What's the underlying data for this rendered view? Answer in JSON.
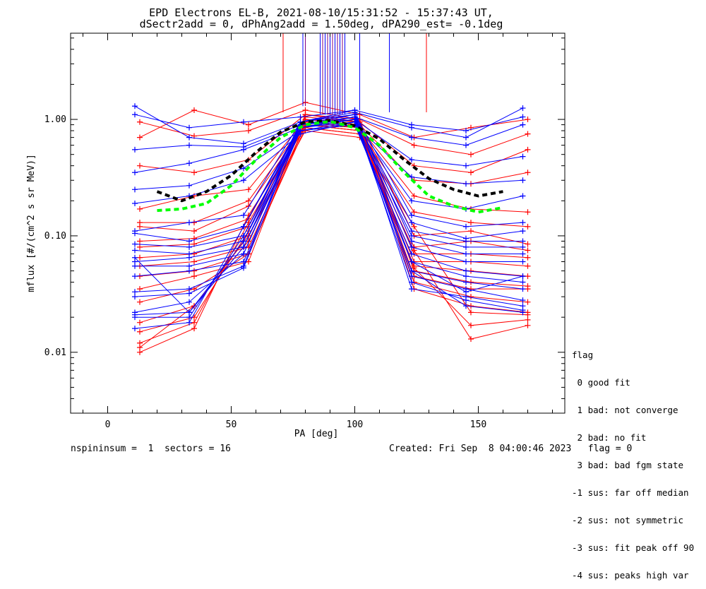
{
  "chart_data": {
    "type": "line",
    "title": "EPD Electrons EL-B, 2021-08-10/15:31:52 - 15:37:43 UT,",
    "subtitle": "dSectr2add = 0, dPhAng2add = 1.50deg, dPA290_est=  -0.1deg",
    "xlabel": "PA [deg]",
    "ylabel": "mflux [#/(cm^2 s sr MeV)]",
    "xlim": [
      -15,
      185
    ],
    "ylim": [
      0.003,
      5.5
    ],
    "yscale": "log",
    "x_ticks": [
      0,
      50,
      100,
      150
    ],
    "x_tick_labels": [
      "0",
      "50",
      "100",
      "150"
    ],
    "y_ticks": [
      0.01,
      0.1,
      1.0
    ],
    "y_tick_labels": [
      "0.01",
      "0.10",
      "1.00"
    ],
    "pa_bins": [
      11,
      33,
      55,
      78,
      100,
      123,
      145,
      168
    ],
    "red_pa_bins": [
      13,
      35,
      57,
      80,
      102,
      124,
      147,
      170
    ],
    "blue_series_values": [
      [
        1.3,
        0.7,
        0.62,
        0.95,
        1.15,
        0.85,
        0.7,
        1.25
      ],
      [
        1.1,
        0.85,
        0.95,
        1.05,
        1.2,
        0.9,
        0.8,
        1.05
      ],
      [
        0.55,
        0.6,
        0.58,
        0.9,
        1.05,
        0.7,
        0.6,
        0.9
      ],
      [
        0.35,
        0.42,
        0.55,
        0.85,
        1.0,
        0.45,
        0.4,
        0.48
      ],
      [
        0.25,
        0.27,
        0.38,
        0.8,
        0.9,
        0.32,
        0.28,
        0.3
      ],
      [
        0.19,
        0.22,
        0.3,
        0.75,
        0.95,
        0.2,
        0.17,
        0.22
      ],
      [
        0.11,
        0.13,
        0.15,
        0.95,
        1.1,
        0.15,
        0.12,
        0.13
      ],
      [
        0.105,
        0.09,
        0.12,
        0.9,
        1.0,
        0.13,
        0.095,
        0.11
      ],
      [
        0.085,
        0.08,
        0.1,
        0.85,
        1.05,
        0.11,
        0.09,
        0.09
      ],
      [
        0.075,
        0.07,
        0.09,
        0.8,
        0.95,
        0.1,
        0.08,
        0.08
      ],
      [
        0.06,
        0.065,
        0.08,
        0.9,
        1.1,
        0.09,
        0.07,
        0.07
      ],
      [
        0.055,
        0.055,
        0.07,
        0.85,
        1.0,
        0.08,
        0.06,
        0.06
      ],
      [
        0.045,
        0.05,
        0.06,
        0.8,
        0.9,
        0.07,
        0.05,
        0.045
      ],
      [
        0.033,
        0.035,
        0.055,
        0.95,
        1.2,
        0.06,
        0.045,
        0.04
      ],
      [
        0.03,
        0.032,
        0.053,
        0.85,
        1.0,
        0.05,
        0.04,
        0.035
      ],
      [
        0.022,
        0.027,
        0.07,
        0.9,
        1.05,
        0.045,
        0.035,
        0.028
      ],
      [
        0.021,
        0.022,
        0.09,
        0.95,
        1.1,
        0.035,
        0.03,
        0.025
      ],
      [
        0.02,
        0.02,
        0.1,
        0.9,
        1.0,
        0.04,
        0.028,
        0.023
      ],
      [
        0.016,
        0.018,
        0.12,
        0.85,
        0.95,
        0.05,
        0.025,
        0.022
      ],
      [
        0.065,
        0.022,
        0.08,
        0.8,
        0.9,
        0.06,
        0.033,
        0.045
      ]
    ],
    "red_series_values": [
      [
        0.7,
        1.2,
        0.9,
        1.4,
        1.1,
        0.7,
        0.85,
        1.0
      ],
      [
        0.95,
        0.72,
        0.8,
        1.2,
        1.0,
        0.6,
        0.5,
        0.75
      ],
      [
        0.4,
        0.35,
        0.45,
        1.1,
        0.95,
        0.4,
        0.35,
        0.55
      ],
      [
        0.17,
        0.22,
        0.25,
        1.0,
        0.9,
        0.3,
        0.28,
        0.35
      ],
      [
        0.13,
        0.13,
        0.2,
        0.95,
        0.85,
        0.22,
        0.17,
        0.16
      ],
      [
        0.12,
        0.11,
        0.18,
        0.9,
        0.8,
        0.16,
        0.13,
        0.12
      ],
      [
        0.09,
        0.095,
        0.14,
        1.05,
        0.95,
        0.1,
        0.11,
        0.085
      ],
      [
        0.08,
        0.085,
        0.12,
        1.0,
        0.9,
        0.08,
        0.09,
        0.075
      ],
      [
        0.065,
        0.07,
        0.1,
        0.95,
        0.85,
        0.07,
        0.07,
        0.065
      ],
      [
        0.055,
        0.06,
        0.08,
        0.9,
        0.8,
        0.06,
        0.06,
        0.055
      ],
      [
        0.045,
        0.05,
        0.07,
        0.85,
        0.75,
        0.055,
        0.05,
        0.045
      ],
      [
        0.035,
        0.045,
        0.06,
        1.1,
        1.0,
        0.05,
        0.04,
        0.037
      ],
      [
        0.027,
        0.035,
        0.07,
        0.9,
        0.85,
        0.045,
        0.035,
        0.035
      ],
      [
        0.018,
        0.025,
        0.09,
        0.95,
        0.9,
        0.04,
        0.03,
        0.027
      ],
      [
        0.015,
        0.02,
        0.11,
        1.0,
        0.95,
        0.035,
        0.025,
        0.022
      ],
      [
        0.012,
        0.018,
        0.13,
        0.9,
        0.8,
        0.053,
        0.017,
        0.019
      ],
      [
        0.01,
        0.016,
        0.15,
        0.85,
        0.75,
        0.075,
        0.013,
        0.017
      ],
      [
        0.011,
        0.025,
        0.1,
        0.8,
        0.7,
        0.12,
        0.022,
        0.021
      ]
    ],
    "black_fit": {
      "x": [
        20,
        30,
        40,
        50,
        60,
        70,
        80,
        90,
        100,
        110,
        120,
        130,
        140,
        150,
        160
      ],
      "y": [
        0.24,
        0.2,
        0.24,
        0.33,
        0.52,
        0.78,
        0.95,
        0.98,
        0.88,
        0.68,
        0.45,
        0.31,
        0.25,
        0.22,
        0.24
      ]
    },
    "green_fit": {
      "x": [
        20,
        30,
        40,
        50,
        60,
        70,
        80,
        90,
        100,
        110,
        120,
        130,
        140,
        150,
        160
      ],
      "y": [
        0.165,
        0.17,
        0.19,
        0.27,
        0.45,
        0.7,
        0.9,
        0.96,
        0.85,
        0.6,
        0.35,
        0.22,
        0.18,
        0.16,
        0.175
      ]
    },
    "vertical_lines": [
      {
        "x": 71,
        "y_top": 5.5,
        "y_bottom": 1.15,
        "color": "red"
      },
      {
        "x": 79,
        "y_top": 5.5,
        "y_bottom": 1.3,
        "color": "blue"
      },
      {
        "x": 80,
        "y_top": 5.5,
        "y_bottom": 1.3,
        "color": "purple"
      },
      {
        "x": 86,
        "y_top": 5.5,
        "y_bottom": 1.1,
        "color": "blue"
      },
      {
        "x": 87,
        "y_top": 5.5,
        "y_bottom": 1.1,
        "color": "purple"
      },
      {
        "x": 88,
        "y_top": 5.5,
        "y_bottom": 1.1,
        "color": "blue"
      },
      {
        "x": 89,
        "y_top": 5.5,
        "y_bottom": 1.1,
        "color": "purple"
      },
      {
        "x": 90,
        "y_top": 5.5,
        "y_bottom": 1.1,
        "color": "blue"
      },
      {
        "x": 91,
        "y_top": 5.5,
        "y_bottom": 1.1,
        "color": "purple"
      },
      {
        "x": 92,
        "y_top": 5.5,
        "y_bottom": 1.1,
        "color": "blue"
      },
      {
        "x": 93,
        "y_top": 5.5,
        "y_bottom": 1.1,
        "color": "purple"
      },
      {
        "x": 94,
        "y_top": 5.5,
        "y_bottom": 1.1,
        "color": "blue"
      },
      {
        "x": 95,
        "y_top": 5.5,
        "y_bottom": 1.1,
        "color": "purple"
      },
      {
        "x": 96,
        "y_top": 5.5,
        "y_bottom": 1.1,
        "color": "blue"
      },
      {
        "x": 102,
        "y_top": 5.5,
        "y_bottom": 1.2,
        "color": "blue"
      },
      {
        "x": 114,
        "y_top": 5.5,
        "y_bottom": 1.15,
        "color": "blue"
      },
      {
        "x": 129,
        "y_top": 5.5,
        "y_bottom": 1.15,
        "color": "red"
      }
    ],
    "colors": {
      "blue": "#0000ff",
      "red": "#ff0000",
      "black_fit": "#000000",
      "green_fit": "#00ff00",
      "purple": "#800080"
    }
  },
  "footer": {
    "left": "nspininsum =  1  sectors = 16",
    "right": "Created: Fri Sep  8 04:00:46 2023   flag = 0"
  },
  "flag_legend": {
    "title": "flag",
    "items": [
      " 0 good fit",
      " 1 bad: not converge",
      " 2 bad: no fit",
      " 3 bad: bad fgm state",
      "-1 sus: far off median",
      "-2 sus: not symmetric",
      "-3 sus: fit peak off 90",
      "-4 sus: peaks high var"
    ]
  }
}
